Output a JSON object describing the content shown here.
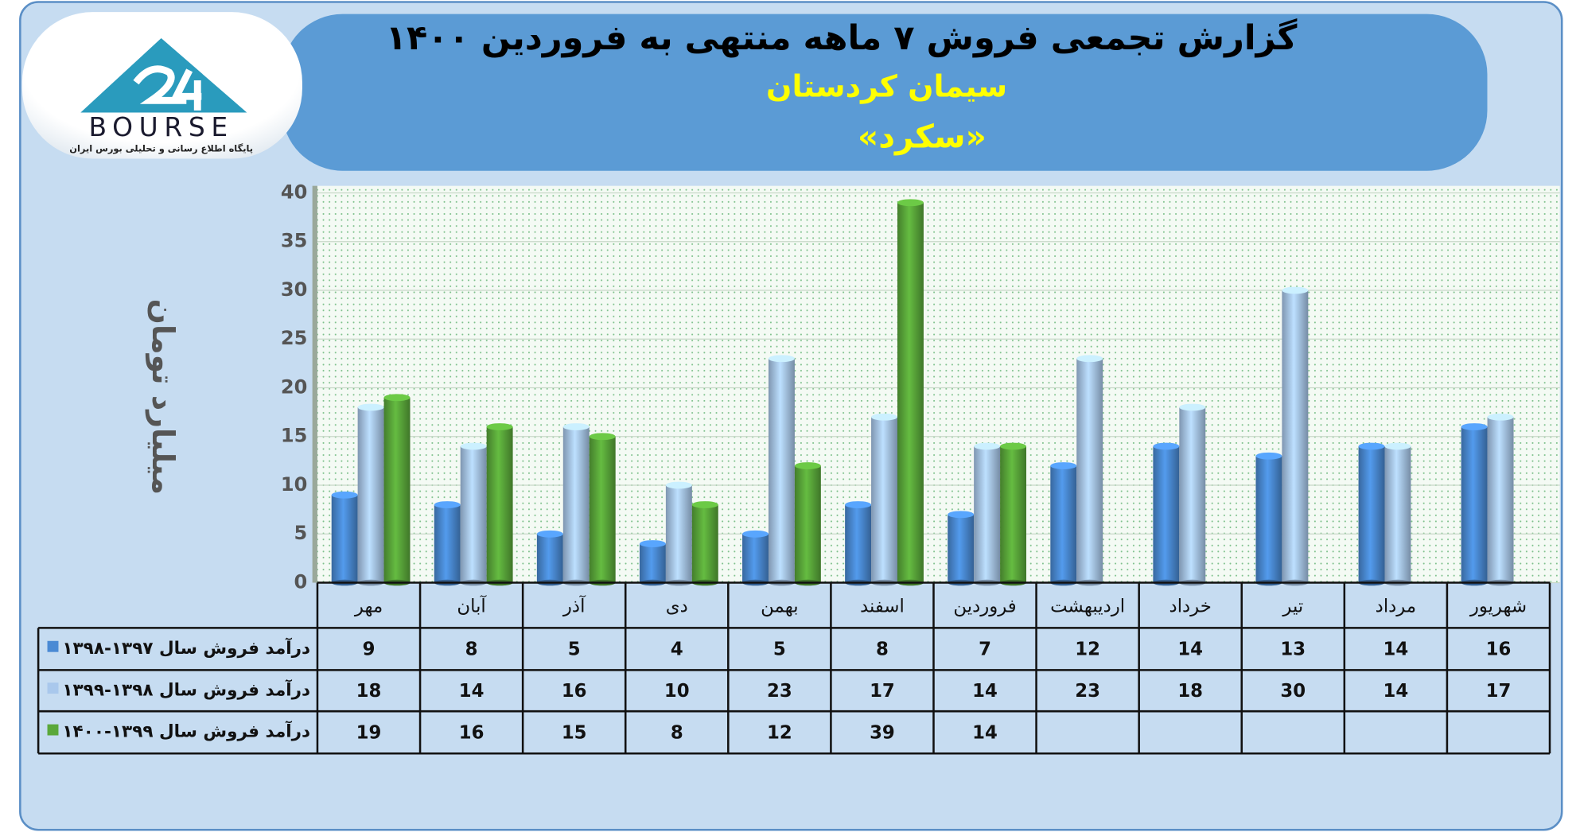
{
  "logo": {
    "text": "BOURSE",
    "tagline": "پایگاه اطلاع رسانی و تحلیلی بورس ایران"
  },
  "chart_data": {
    "type": "bar",
    "title": "گزارش تجمعی فروش ۷ ماهه منتهی به فروردین ۱۴۰۰",
    "subtitle": "سیمان کردستان",
    "symbol": "«سکرد»",
    "y_label": "میلیارد تومان",
    "categories": [
      "مهر",
      "آبان",
      "آذر",
      "دی",
      "بهمن",
      "اسفند",
      "فروردین",
      "اردیبهشت",
      "خرداد",
      "تیر",
      "مرداد",
      "شهریور"
    ],
    "series": [
      {
        "name": "درآمد فروش سال ۱۳۹۷-۱۳۹۸",
        "color": "#4a8ad4",
        "values": [
          9,
          8,
          5,
          4,
          5,
          8,
          7,
          12,
          14,
          13,
          14,
          16
        ]
      },
      {
        "name": "درآمد فروش سال ۱۳۹۸-۱۳۹۹",
        "color": "#a9c8ec",
        "values": [
          18,
          14,
          16,
          10,
          23,
          17,
          14,
          23,
          18,
          30,
          14,
          17
        ]
      },
      {
        "name": "درآمد فروش سال ۱۳۹۹-۱۴۰۰",
        "color": "#5aa83a",
        "values": [
          19,
          16,
          15,
          8,
          12,
          39,
          14,
          null,
          null,
          null,
          null,
          null
        ]
      }
    ],
    "ylim": [
      0,
      40
    ],
    "yticks": [
      0,
      5,
      10,
      15,
      20,
      25,
      30,
      35,
      40
    ],
    "grid": true,
    "data_table": true
  }
}
